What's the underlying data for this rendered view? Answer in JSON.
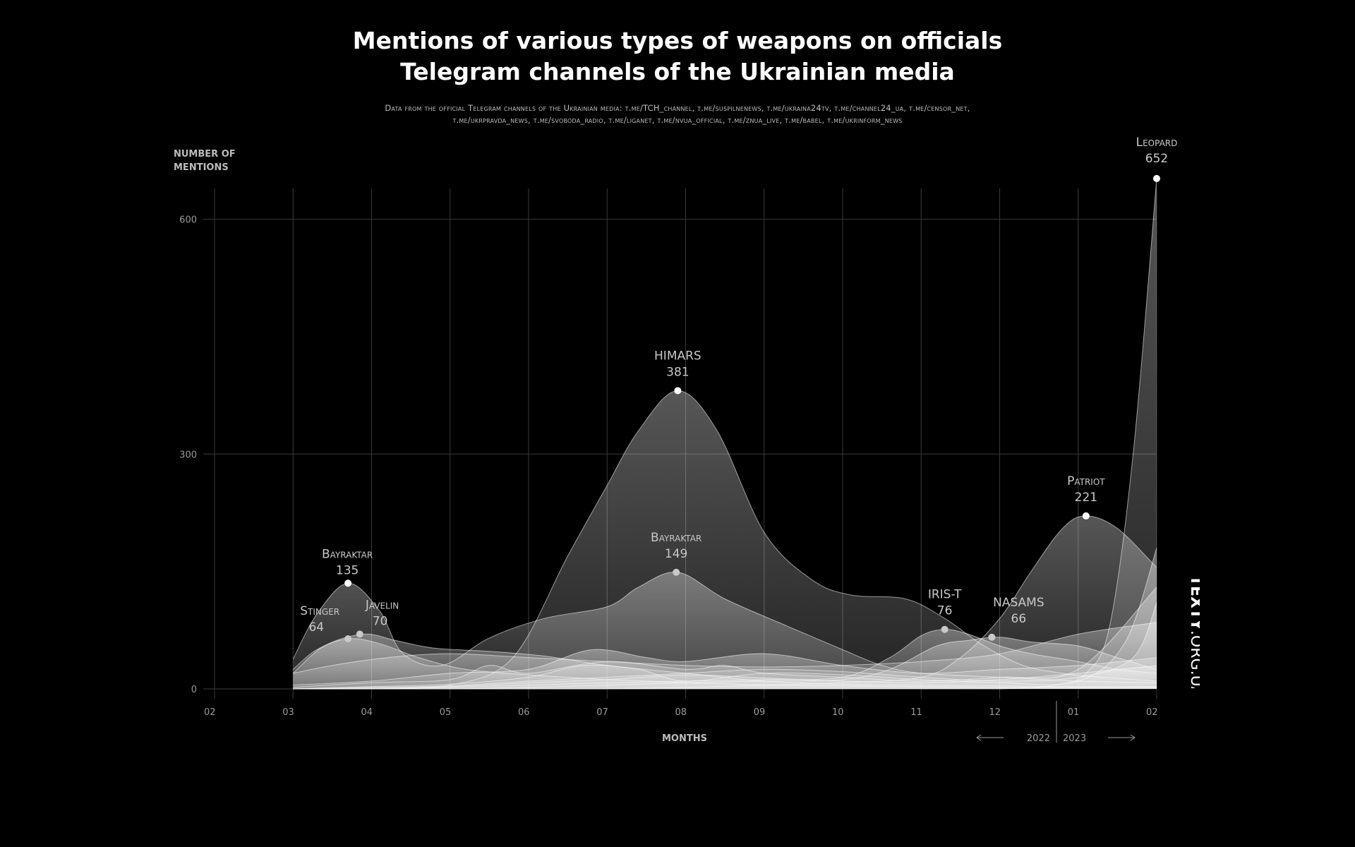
{
  "title_lines": [
    "Mentions of various types of weapons on officials",
    "Telegram channels of the Ukrainian media"
  ],
  "subtitle_lines": [
    "Data from the official Telegram channels of the Ukrainian media: t.me/TCH_channel, t.me/suspilnenews, t.me/ukraina24tv, t.me/channel24_ua, t.me/censor_net,",
    "t.me/ukrpravda_news, t.me/svoboda_radio, t.me/liganet, t.me/nvua_official, t.me/znua_live, t.me/babel, t.me/ukrinform_news"
  ],
  "brand": {
    "bold": "TEXTY",
    "rest": ".ORG.UA"
  },
  "chart_data": {
    "type": "area",
    "ylabel_lines": [
      "NUMBER OF",
      "MENTIONS"
    ],
    "xlabel": "MONTHS",
    "x_ticks": [
      "02",
      "03",
      "04",
      "05",
      "06",
      "07",
      "08",
      "09",
      "10",
      "11",
      "12",
      "01",
      "02"
    ],
    "y_ticks": [
      0,
      300,
      600
    ],
    "ylim": [
      0,
      652
    ],
    "year_left": "2022",
    "year_right": "2023",
    "grid": true,
    "x_min": 0,
    "x_max": 12,
    "series": [
      {
        "name": "Bayraktar",
        "points": [
          [
            1,
            38
          ],
          [
            1.3,
            95
          ],
          [
            1.7,
            135
          ],
          [
            2.1,
            100
          ],
          [
            2.4,
            45
          ],
          [
            2.9,
            30
          ],
          [
            3.5,
            65
          ],
          [
            4.2,
            90
          ],
          [
            5,
            105
          ],
          [
            5.4,
            130
          ],
          [
            5.9,
            149
          ],
          [
            6.5,
            115
          ],
          [
            7.3,
            80
          ],
          [
            8,
            50
          ],
          [
            8.5,
            30
          ],
          [
            9,
            20
          ],
          [
            10,
            15
          ],
          [
            11,
            10
          ],
          [
            12,
            8
          ]
        ]
      },
      {
        "name": "Stinger",
        "points": [
          [
            1,
            25
          ],
          [
            1.3,
            50
          ],
          [
            1.7,
            64
          ],
          [
            2.1,
            58
          ],
          [
            2.6,
            40
          ],
          [
            3.2,
            25
          ],
          [
            4,
            18
          ],
          [
            5,
            12
          ],
          [
            6,
            8
          ],
          [
            7,
            5
          ],
          [
            8,
            4
          ],
          [
            9,
            3
          ],
          [
            10,
            2
          ],
          [
            11,
            2
          ],
          [
            12,
            2
          ]
        ]
      },
      {
        "name": "Javelin",
        "points": [
          [
            1,
            20
          ],
          [
            1.4,
            55
          ],
          [
            1.9,
            70
          ],
          [
            2.3,
            62
          ],
          [
            2.8,
            52
          ],
          [
            3.5,
            48
          ],
          [
            4.2,
            42
          ],
          [
            5,
            30
          ],
          [
            6,
            20
          ],
          [
            7,
            10
          ],
          [
            8,
            6
          ],
          [
            9,
            5
          ],
          [
            10,
            4
          ],
          [
            11,
            3
          ],
          [
            12,
            3
          ]
        ]
      },
      {
        "name": "HIMARS",
        "points": [
          [
            1,
            0
          ],
          [
            2,
            0
          ],
          [
            3,
            5
          ],
          [
            3.8,
            40
          ],
          [
            4.5,
            170
          ],
          [
            5,
            260
          ],
          [
            5.4,
            330
          ],
          [
            5.9,
            381
          ],
          [
            6.4,
            330
          ],
          [
            7,
            200
          ],
          [
            7.6,
            140
          ],
          [
            8.1,
            120
          ],
          [
            8.8,
            115
          ],
          [
            9.3,
            90
          ],
          [
            9.8,
            55
          ],
          [
            10.3,
            30
          ],
          [
            10.8,
            20
          ],
          [
            11.3,
            15
          ],
          [
            12,
            10
          ]
        ]
      },
      {
        "name": "IRIS-T",
        "points": [
          [
            1,
            0
          ],
          [
            2,
            0
          ],
          [
            3,
            2
          ],
          [
            4,
            5
          ],
          [
            5,
            8
          ],
          [
            6,
            10
          ],
          [
            7,
            12
          ],
          [
            8,
            15
          ],
          [
            8.6,
            40
          ],
          [
            9,
            68
          ],
          [
            9.3,
            76
          ],
          [
            9.6,
            70
          ],
          [
            10,
            55
          ],
          [
            10.4,
            45
          ],
          [
            11,
            35
          ],
          [
            11.5,
            25
          ],
          [
            12,
            20
          ]
        ]
      },
      {
        "name": "NASAMS",
        "points": [
          [
            1,
            0
          ],
          [
            2,
            0
          ],
          [
            3,
            0
          ],
          [
            4,
            2
          ],
          [
            5,
            5
          ],
          [
            6,
            8
          ],
          [
            7,
            10
          ],
          [
            8,
            12
          ],
          [
            8.6,
            25
          ],
          [
            9.2,
            55
          ],
          [
            9.6,
            62
          ],
          [
            10,
            66
          ],
          [
            10.4,
            60
          ],
          [
            11,
            55
          ],
          [
            11.5,
            40
          ],
          [
            12,
            25
          ]
        ]
      },
      {
        "name": "Patriot",
        "points": [
          [
            1,
            0
          ],
          [
            2,
            0
          ],
          [
            3,
            0
          ],
          [
            4,
            0
          ],
          [
            5,
            0
          ],
          [
            6,
            2
          ],
          [
            7,
            5
          ],
          [
            8,
            8
          ],
          [
            9,
            15
          ],
          [
            9.5,
            40
          ],
          [
            10,
            90
          ],
          [
            10.4,
            150
          ],
          [
            10.8,
            205
          ],
          [
            11.1,
            221
          ],
          [
            11.5,
            205
          ],
          [
            12,
            155
          ]
        ]
      },
      {
        "name": "Leopard",
        "points": [
          [
            1,
            0
          ],
          [
            2,
            0
          ],
          [
            3,
            0
          ],
          [
            4,
            0
          ],
          [
            5,
            0
          ],
          [
            6,
            0
          ],
          [
            7,
            0
          ],
          [
            8,
            0
          ],
          [
            9,
            0
          ],
          [
            10,
            0
          ],
          [
            10.7,
            5
          ],
          [
            11.1,
            20
          ],
          [
            11.4,
            80
          ],
          [
            11.7,
            300
          ],
          [
            12,
            652
          ]
        ]
      },
      {
        "name": "",
        "points": [
          [
            1,
            20
          ],
          [
            1.5,
            30
          ],
          [
            2.2,
            40
          ],
          [
            3,
            45
          ],
          [
            4,
            40
          ],
          [
            5,
            35
          ],
          [
            6,
            30
          ],
          [
            7,
            28
          ],
          [
            8,
            30
          ],
          [
            9,
            35
          ],
          [
            10,
            45
          ],
          [
            11,
            70
          ],
          [
            12,
            85
          ]
        ]
      },
      {
        "name": "",
        "points": [
          [
            1,
            5
          ],
          [
            2,
            10
          ],
          [
            3,
            20
          ],
          [
            4,
            25
          ],
          [
            4.8,
            50
          ],
          [
            5.5,
            40
          ],
          [
            6,
            35
          ],
          [
            7,
            45
          ],
          [
            8,
            30
          ],
          [
            9,
            20
          ],
          [
            10,
            25
          ],
          [
            11,
            30
          ],
          [
            12,
            40
          ]
        ]
      },
      {
        "name": "",
        "points": [
          [
            1,
            2
          ],
          [
            2,
            8
          ],
          [
            3,
            12
          ],
          [
            3.5,
            30
          ],
          [
            4,
            20
          ],
          [
            5,
            35
          ],
          [
            6,
            25
          ],
          [
            6.5,
            30
          ],
          [
            7,
            20
          ],
          [
            8,
            15
          ],
          [
            9,
            10
          ],
          [
            10,
            15
          ],
          [
            11,
            25
          ],
          [
            12,
            130
          ]
        ]
      },
      {
        "name": "",
        "points": [
          [
            1,
            0
          ],
          [
            2,
            3
          ],
          [
            3,
            6
          ],
          [
            4,
            15
          ],
          [
            4.7,
            30
          ],
          [
            5.4,
            25
          ],
          [
            6,
            10
          ],
          [
            7,
            20
          ],
          [
            8,
            18
          ],
          [
            9,
            12
          ],
          [
            10,
            8
          ],
          [
            11,
            10
          ],
          [
            11.6,
            60
          ],
          [
            12,
            180
          ]
        ]
      },
      {
        "name": "",
        "points": [
          [
            1,
            0
          ],
          [
            2,
            2
          ],
          [
            3,
            4
          ],
          [
            4,
            10
          ],
          [
            5,
            15
          ],
          [
            6,
            20
          ],
          [
            7,
            25
          ],
          [
            8,
            22
          ],
          [
            9,
            15
          ],
          [
            10,
            10
          ],
          [
            11,
            15
          ],
          [
            11.7,
            40
          ],
          [
            12,
            110
          ]
        ]
      },
      {
        "name": "",
        "points": [
          [
            1,
            0
          ],
          [
            2,
            1
          ],
          [
            3,
            3
          ],
          [
            4,
            8
          ],
          [
            5,
            12
          ],
          [
            6,
            18
          ],
          [
            7,
            14
          ],
          [
            8,
            10
          ],
          [
            9,
            8
          ],
          [
            10,
            12
          ],
          [
            11,
            20
          ],
          [
            12,
            30
          ]
        ]
      }
    ],
    "annotations": [
      {
        "name": "Bayraktar",
        "value": "135",
        "x": 1.7,
        "y": 135
      },
      {
        "name": "Stinger",
        "value": "64",
        "x": 1.7,
        "y": 64
      },
      {
        "name": "Javelin",
        "value": "70",
        "x": 1.85,
        "y": 70
      },
      {
        "name": "HIMARS",
        "value": "381",
        "x": 5.9,
        "y": 381
      },
      {
        "name": "Bayraktar",
        "value": "149",
        "x": 5.88,
        "y": 149
      },
      {
        "name": "IRIS-T",
        "value": "76",
        "x": 9.3,
        "y": 76
      },
      {
        "name": "NASAMS",
        "value": "66",
        "x": 9.9,
        "y": 66
      },
      {
        "name": "Patriot",
        "value": "221",
        "x": 11.1,
        "y": 221
      },
      {
        "name": "Leopard",
        "value": "652",
        "x": 12,
        "y": 652
      }
    ]
  }
}
